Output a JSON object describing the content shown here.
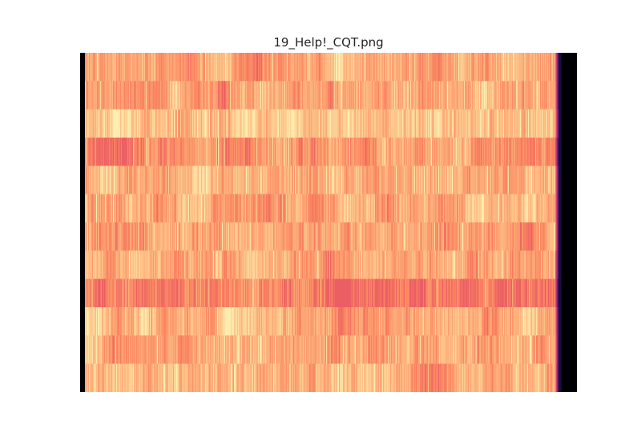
{
  "chart_data": {
    "type": "heatmap",
    "title": "19_Help!_CQT.png",
    "xlabel": "",
    "ylabel": "",
    "grid": false,
    "legend": "none",
    "colormap": "magma",
    "n_time_frames": 620,
    "n_pitch_bands": 12,
    "band_mean_levels": [
      0.82,
      0.8,
      0.88,
      0.78,
      0.84,
      0.82,
      0.8,
      0.82,
      0.74,
      0.84,
      0.82,
      0.84
    ],
    "onset_fraction": 0.01,
    "fade_start_fraction": 0.955,
    "silence_start_fraction": 0.97
  }
}
